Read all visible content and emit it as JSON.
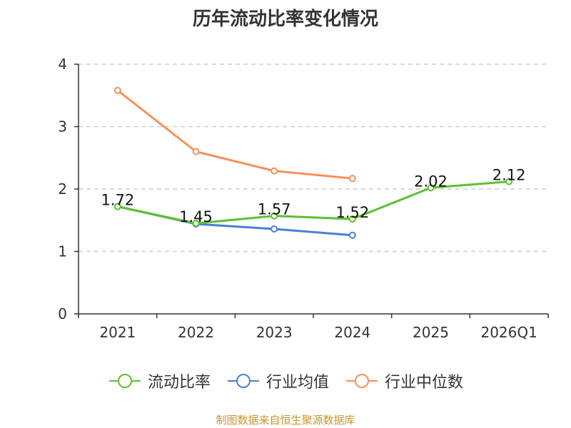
{
  "chart_data": {
    "type": "line",
    "title": "历年流动比率变化情况",
    "categories": [
      "2021",
      "2022",
      "2023",
      "2024",
      "2025",
      "2026Q1"
    ],
    "ylim": [
      0,
      4
    ],
    "yticks": [
      0,
      1,
      2,
      3,
      4
    ],
    "grid": true,
    "legend_position": "bottom",
    "series": [
      {
        "name": "流动比率",
        "color": "#5cc130",
        "values": [
          1.72,
          1.45,
          1.57,
          1.52,
          2.02,
          2.12
        ],
        "labels": [
          "1.72",
          "1.45",
          "1.57",
          "1.52",
          "2.02",
          "2.12"
        ]
      },
      {
        "name": "行业均值",
        "color": "#4a7fd6",
        "values": [
          1.72,
          1.44,
          1.36,
          1.26,
          null,
          null
        ]
      },
      {
        "name": "行业中位数",
        "color": "#f5915a",
        "values": [
          3.58,
          2.6,
          2.29,
          2.17,
          null,
          null
        ]
      }
    ],
    "source": "制图数据来自恒生聚源数据库"
  }
}
